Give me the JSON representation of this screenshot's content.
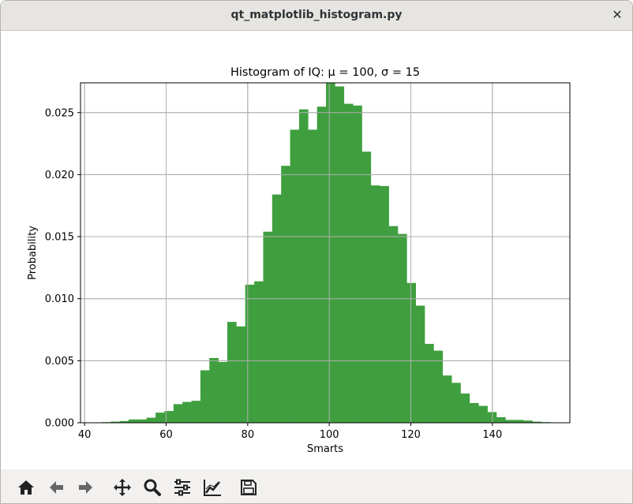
{
  "window": {
    "title": "qt_matplotlib_histogram.py",
    "close_glyph": "✕"
  },
  "toolbar": {
    "buttons": [
      {
        "name": "home-icon",
        "tooltip": "Home"
      },
      {
        "name": "back-arrow-icon",
        "tooltip": "Back"
      },
      {
        "name": "forward-arrow-icon",
        "tooltip": "Forward"
      },
      {
        "name": "pan-icon",
        "tooltip": "Pan"
      },
      {
        "name": "zoom-icon",
        "tooltip": "Zoom"
      },
      {
        "name": "subplots-icon",
        "tooltip": "Subplots"
      },
      {
        "name": "edit-axes-icon",
        "tooltip": "Customize"
      },
      {
        "name": "save-icon",
        "tooltip": "Save"
      }
    ]
  },
  "colors": {
    "bar": "#3f9f3f",
    "grid": "#b0b0b0",
    "axes": "#000000"
  },
  "chart_data": {
    "type": "bar",
    "title": "Histogram of IQ:  μ = 100,  σ = 15",
    "xlabel": "Smarts",
    "ylabel": "Probability",
    "xlim": [
      39,
      159
    ],
    "ylim": [
      0,
      0.0274
    ],
    "xticks": [
      40,
      60,
      80,
      100,
      120,
      140
    ],
    "yticks": [
      0.0,
      0.005,
      0.01,
      0.015,
      0.02,
      0.025
    ],
    "ytick_labels": [
      "0.000",
      "0.005",
      "0.010",
      "0.015",
      "0.020",
      "0.025"
    ],
    "grid": true,
    "bin_edges": [
      44.2,
      46.4,
      48.6,
      50.8,
      53.0,
      55.2,
      57.4,
      59.6,
      61.8,
      64.0,
      66.2,
      68.4,
      70.6,
      72.8,
      75.0,
      77.2,
      79.4,
      81.6,
      83.8,
      86.0,
      88.2,
      90.4,
      92.6,
      94.8,
      97.0,
      99.2,
      101.4,
      103.6,
      105.8,
      108.0,
      110.2,
      112.4,
      114.6,
      116.8,
      119.0,
      121.2,
      123.4,
      125.6,
      127.8,
      130.0,
      132.2,
      134.4,
      136.6,
      138.8,
      141.0,
      143.2,
      145.4,
      147.6,
      149.8,
      152.0,
      154.2
    ],
    "values": [
      5e-05,
      9e-05,
      0.00014,
      0.00027,
      0.00027,
      0.00041,
      0.00082,
      0.00095,
      0.0015,
      0.00168,
      0.00177,
      0.00423,
      0.00522,
      0.0049,
      0.00813,
      0.00777,
      0.01113,
      0.0114,
      0.0154,
      0.0184,
      0.02071,
      0.02362,
      0.02526,
      0.02362,
      0.02548,
      0.02739,
      0.02711,
      0.02571,
      0.02557,
      0.02185,
      0.01913,
      0.01908,
      0.01585,
      0.01522,
      0.01127,
      0.00944,
      0.00636,
      0.00581,
      0.00381,
      0.00322,
      0.00236,
      0.00159,
      0.00136,
      0.00086,
      0.00045,
      0.00023,
      0.00023,
      0.00018,
      9e-05,
      5e-05
    ]
  }
}
